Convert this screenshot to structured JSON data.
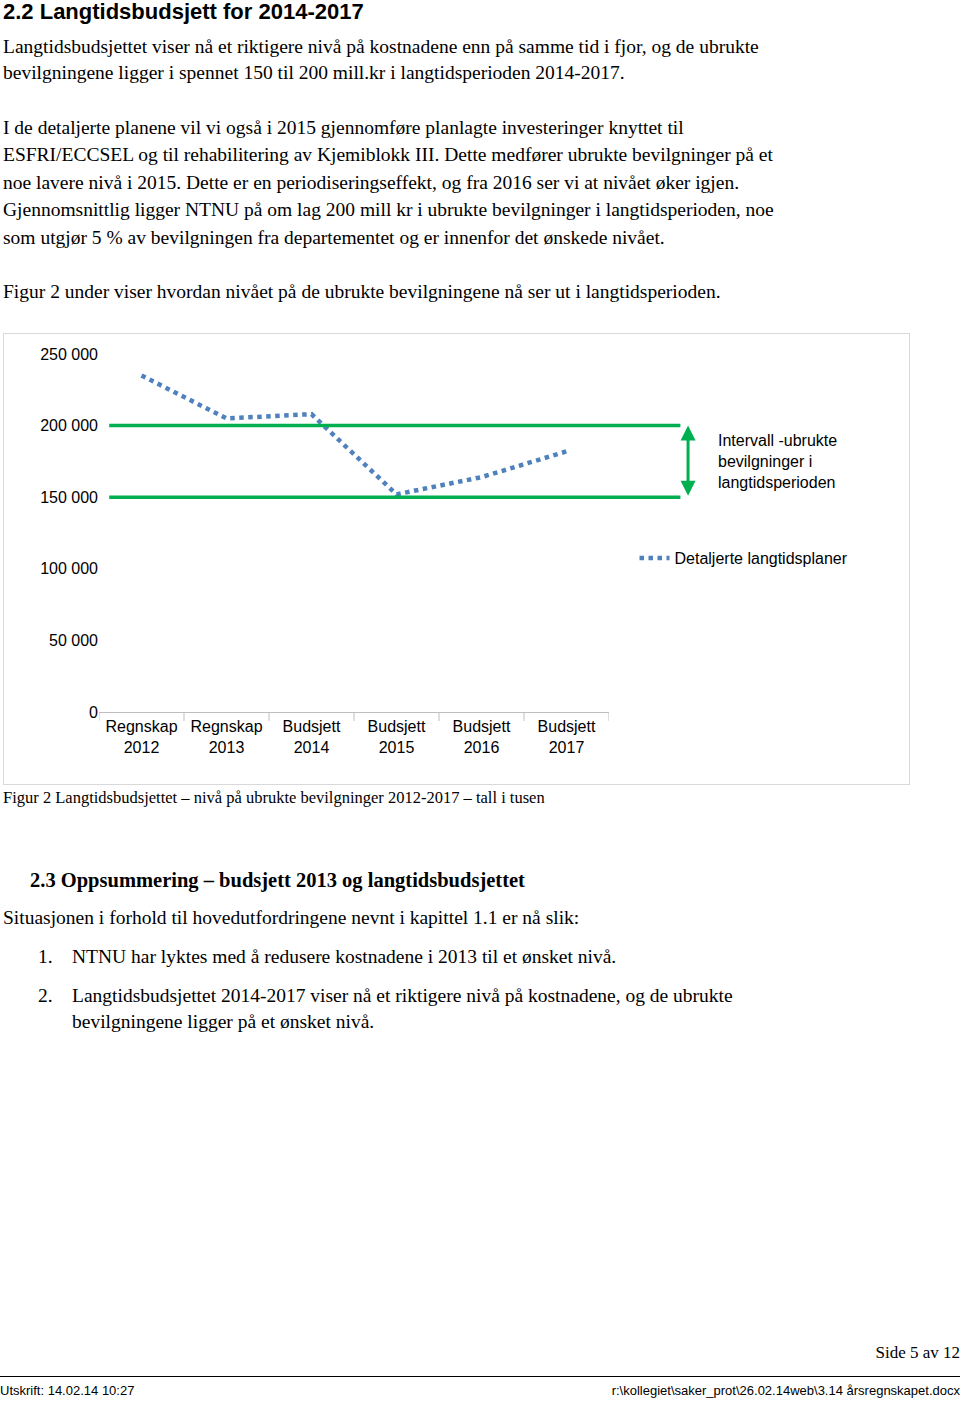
{
  "heading": "2.2 Langtidsbudsjett for 2014-2017",
  "paragraphs": [
    [
      "Langtidsbudsjettet viser nå et riktigere nivå på kostnadene enn på samme tid i fjor, og de ubrukte",
      "bevilgningene ligger i spennet 150 til 200 mill.kr i langtidsperioden 2014-2017."
    ],
    [
      "I de detaljerte planene vil vi også i 2015 gjennomføre planlagte investeringer knyttet til",
      "ESFRI/ECCSEL og til rehabilitering av Kjemiblokk III. Dette medfører ubrukte bevilgninger på et",
      "noe lavere nivå i 2015. Dette er en periodiseringseffekt, og fra 2016 ser vi at nivået øker igjen.",
      "Gjennomsnittlig ligger NTNU på om lag 200 mill kr i ubrukte bevilgninger i langtidsperioden, noe",
      "som utgjør 5 % av bevilgningen fra departementet og er innenfor det ønskede nivået."
    ],
    [
      "Figur 2 under viser hvordan nivået på de ubrukte bevilgningene nå ser ut i langtidsperioden."
    ]
  ],
  "chart_data": {
    "type": "line",
    "categories": [
      "Regnskap 2012",
      "Regnskap 2013",
      "Budsjett 2014",
      "Budsjett 2015",
      "Budsjett 2016",
      "Budsjett 2017"
    ],
    "series": [
      {
        "name": "Detaljerte langtidsplaner",
        "color": "#4f81bd",
        "line_style": "dotted",
        "values": [
          235000,
          205000,
          208000,
          152000,
          164000,
          182000
        ]
      }
    ],
    "interval": {
      "label": [
        "Intervall -ubrukte",
        "bevilgninger i",
        "langtidsperioden"
      ],
      "values": [
        150000,
        200000
      ],
      "color": "#00b050"
    },
    "ylim": [
      0,
      250000
    ],
    "yticks": [
      {
        "value": 0,
        "label": "0"
      },
      {
        "value": 50000,
        "label": "50 000"
      },
      {
        "value": 100000,
        "label": "100 000"
      },
      {
        "value": 150000,
        "label": "150 000"
      },
      {
        "value": 200000,
        "label": "200 000"
      },
      {
        "value": 250000,
        "label": "250 000"
      }
    ],
    "grid": false,
    "legend": "right"
  },
  "caption": "Figur 2 Langtidsbudsjettet – nivå på ubrukte bevilgninger 2012-2017 – tall i tusen",
  "section": {
    "heading": "2.3 Oppsummering – budsjett 2013 og langtidsbudsjettet",
    "intro": "Situasjonen i forhold til hovedutfordringene nevnt i kapittel 1.1 er nå slik:",
    "items": [
      {
        "number": "1.",
        "lines": [
          "NTNU har lyktes med å redusere kostnadene i 2013 til et ønsket nivå."
        ]
      },
      {
        "number": "2.",
        "lines": [
          "Langtidsbudsjettet 2014-2017 viser nå et riktigere nivå på kostnadene, og de ubrukte",
          "bevilgningene ligger på et ønsket nivå."
        ]
      }
    ]
  },
  "footer": {
    "page": "Side 5 av 12",
    "printed": "Utskrift: 14.02.14 10:27",
    "path": "r:\\kollegiet\\saker_prot\\26.02.14web\\3.14 årsregnskapet.docx"
  }
}
